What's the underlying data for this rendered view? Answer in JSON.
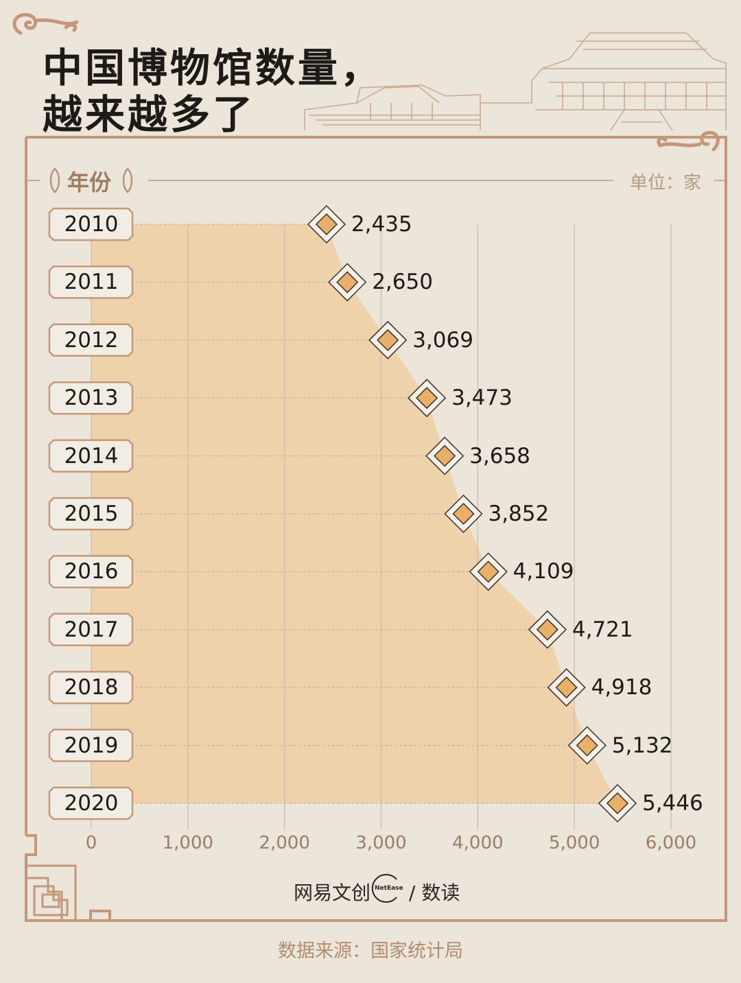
{
  "title_line1": "中国博物馆数量，",
  "title_line2": "越来越多了",
  "header": {
    "year_label": "年份",
    "unit_label": "单位：家"
  },
  "brand": {
    "name": "网易文创",
    "name_en": "NetEase",
    "sub": "/ 数读"
  },
  "source": "数据来源：国家统计局",
  "colors": {
    "background": "#ebe5da",
    "area_fill": "#eed2ac",
    "frame": "#c39878",
    "marker": "#e9b06a",
    "text": "#1e1a17"
  },
  "chart_data": {
    "type": "area",
    "orientation": "horizontal",
    "categories": [
      "2010",
      "2011",
      "2012",
      "2013",
      "2014",
      "2015",
      "2016",
      "2017",
      "2018",
      "2019",
      "2020"
    ],
    "values": [
      2435,
      2650,
      3069,
      3473,
      3658,
      3852,
      4109,
      4721,
      4918,
      5132,
      5446
    ],
    "value_labels": [
      "2,435",
      "2,650",
      "3,069",
      "3,473",
      "3,658",
      "3,852",
      "4,109",
      "4,721",
      "4,918",
      "5,132",
      "5,446"
    ],
    "xlim": [
      0,
      6000
    ],
    "x_ticks": [
      0,
      1000,
      2000,
      3000,
      4000,
      5000,
      6000
    ],
    "x_tick_labels": [
      "0",
      "1,000",
      "2,000",
      "3,000",
      "4,000",
      "5,000",
      "6,000"
    ],
    "grid": true
  }
}
